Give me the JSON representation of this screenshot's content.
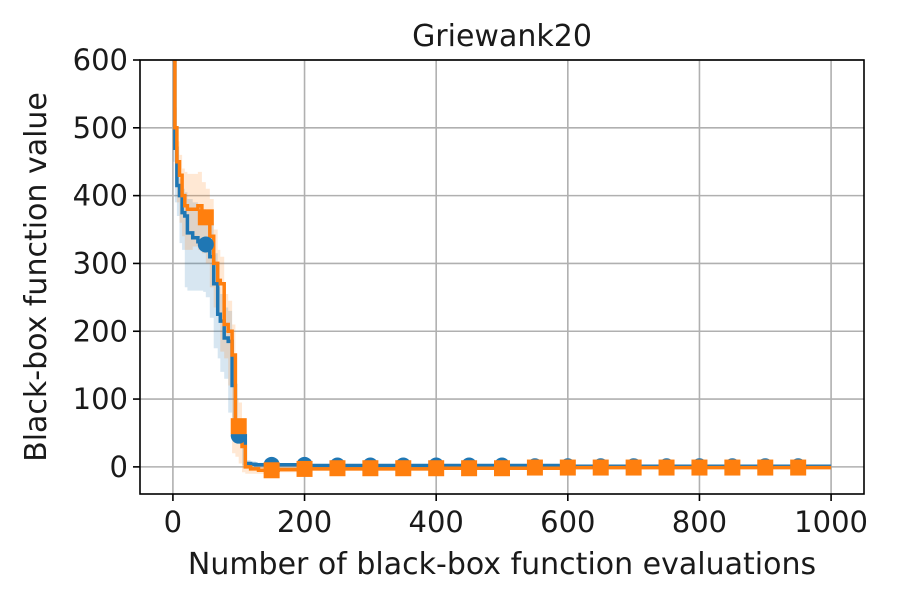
{
  "chart_data": {
    "type": "line",
    "title": "Griewank20",
    "xlabel": "Number of black-box function evaluations",
    "ylabel": "Black-box function value",
    "xlim": [
      -50,
      1050
    ],
    "ylim": [
      -40,
      600
    ],
    "xticks": [
      0,
      200,
      400,
      600,
      800,
      1000
    ],
    "yticks": [
      0,
      100,
      200,
      300,
      400,
      500,
      600
    ],
    "grid": true,
    "series": [
      {
        "color": "#1f77b4",
        "marker": "circle",
        "x": [
          0,
          3,
          6,
          10,
          14,
          18,
          22,
          30,
          38,
          46,
          50,
          56,
          62,
          68,
          72,
          78,
          84,
          90,
          95,
          100,
          105,
          110,
          118,
          126,
          140,
          160,
          200,
          400,
          600,
          800,
          1000
        ],
        "y": [
          600,
          470,
          415,
          400,
          375,
          370,
          345,
          338,
          332,
          330,
          328,
          310,
          270,
          225,
          215,
          190,
          185,
          120,
          55,
          48,
          46,
          5,
          4,
          3,
          3,
          3,
          2,
          2,
          1,
          1,
          1
        ],
        "lower": [
          600,
          450,
          390,
          370,
          330,
          320,
          265,
          260,
          260,
          260,
          258,
          250,
          220,
          175,
          160,
          140,
          130,
          80,
          40,
          38,
          36,
          2,
          1,
          1,
          1,
          1,
          1,
          1,
          0,
          0,
          0
        ],
        "upper": [
          600,
          490,
          440,
          425,
          410,
          405,
          395,
          390,
          385,
          380,
          378,
          360,
          315,
          265,
          255,
          235,
          230,
          160,
          70,
          58,
          56,
          10,
          8,
          6,
          5,
          5,
          4,
          3,
          2,
          2,
          2
        ],
        "marker_x": [
          50,
          100,
          150,
          200,
          250,
          300,
          350,
          400,
          450,
          500,
          550,
          600,
          650,
          700,
          750,
          800,
          850,
          900,
          950
        ],
        "marker_y": [
          328,
          46,
          3,
          3,
          2,
          2,
          2,
          2,
          2,
          2,
          1,
          1,
          1,
          1,
          1,
          1,
          1,
          1,
          1
        ]
      },
      {
        "color": "#ff7f0e",
        "marker": "square",
        "x": [
          0,
          3,
          6,
          10,
          14,
          18,
          22,
          30,
          38,
          44,
          50,
          56,
          62,
          68,
          72,
          78,
          84,
          90,
          95,
          100,
          105,
          110,
          118,
          130,
          145,
          160,
          200,
          400,
          600,
          800,
          1000
        ],
        "y": [
          600,
          500,
          450,
          430,
          400,
          385,
          380,
          380,
          385,
          375,
          368,
          340,
          300,
          275,
          270,
          210,
          200,
          165,
          62,
          60,
          30,
          0,
          -3,
          -5,
          -5,
          -4,
          -3,
          -2,
          -1,
          -1,
          -1
        ],
        "lower": [
          600,
          470,
          415,
          390,
          360,
          340,
          320,
          320,
          325,
          320,
          315,
          300,
          265,
          235,
          225,
          170,
          160,
          120,
          20,
          15,
          5,
          -8,
          -10,
          -10,
          -10,
          -9,
          -8,
          -6,
          -4,
          -4,
          -3
        ],
        "upper": [
          600,
          530,
          480,
          460,
          440,
          435,
          432,
          432,
          435,
          420,
          410,
          395,
          350,
          320,
          310,
          255,
          245,
          210,
          100,
          95,
          60,
          8,
          5,
          2,
          1,
          1,
          1,
          1,
          1,
          1,
          1
        ],
        "marker_x": [
          50,
          100,
          150,
          200,
          250,
          300,
          350,
          400,
          450,
          500,
          550,
          600,
          650,
          700,
          750,
          800,
          850,
          900,
          950
        ],
        "marker_y": [
          368,
          60,
          -5,
          -3,
          -2,
          -2,
          -2,
          -2,
          -2,
          -2,
          -1,
          -1,
          -1,
          -1,
          -1,
          -1,
          -1,
          -1,
          -1
        ]
      }
    ]
  }
}
